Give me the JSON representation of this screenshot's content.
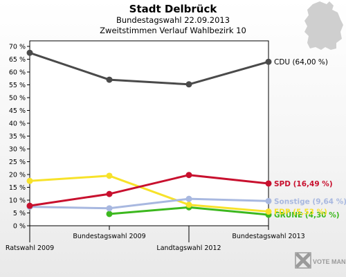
{
  "header": {
    "title": "Stadt Delbrück",
    "subtitle1": "Bundestagswahl 22.09.2013",
    "subtitle2": "Zweitstimmen Verlauf Wahlbezirk 10"
  },
  "branding": {
    "logo_text": "VOTE MANAGER"
  },
  "chart_data": {
    "type": "line",
    "title": "Stadt Delbrück",
    "subtitle": "Bundestagswahl 22.09.2013 / Zweitstimmen Verlauf Wahlbezirk 10",
    "categories": [
      "Ratswahl 2009",
      "Bundestagswahl 2009",
      "Landtagswahl 2012",
      "Bundestagswahl 2013"
    ],
    "yticks": [
      "0 %",
      "5 %",
      "10 %",
      "15 %",
      "20 %",
      "25 %",
      "30 %",
      "35 %",
      "40 %",
      "45 %",
      "50 %",
      "55 %",
      "60 %",
      "65 %",
      "70 %"
    ],
    "ylim": [
      0,
      70
    ],
    "grid": false,
    "series": [
      {
        "name": "CDU",
        "color": "#4a4a4a",
        "values": [
          67.5,
          57.0,
          55.2,
          64.0
        ],
        "end_label": "CDU (64,00 %)"
      },
      {
        "name": "SPD",
        "color": "#c8102e",
        "values": [
          7.8,
          12.4,
          19.8,
          16.49
        ],
        "end_label": "SPD (16,49 %)"
      },
      {
        "name": "Sonstige",
        "color": "#a8b8e0",
        "values": [
          7.4,
          6.8,
          10.5,
          9.64
        ],
        "end_label": "Sonstige (9,64 %)"
      },
      {
        "name": "FDP",
        "color": "#f7e22a",
        "values": [
          17.5,
          19.5,
          8.2,
          5.53
        ],
        "end_label": "FDP (5,53 %)"
      },
      {
        "name": "GRÜNE",
        "color": "#3cb81e",
        "values": [
          null,
          4.6,
          7.2,
          4.3
        ],
        "end_label": "GRÜNE (4,30 %)"
      }
    ]
  }
}
